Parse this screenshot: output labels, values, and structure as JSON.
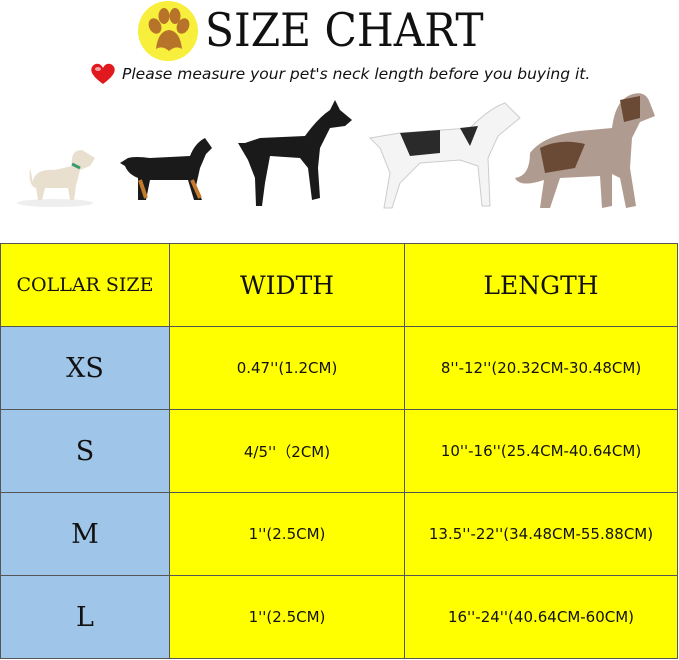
{
  "header": {
    "title": "SIZE CHART",
    "note": "Please measure your pet's neck length before you buying it.",
    "icons": [
      "paw-icon",
      "heart-icon"
    ]
  },
  "colors": {
    "size_column": "#9fc5e8",
    "cells": "#ffff00",
    "paw_circle": "#f7ef3c",
    "paw": "#b8732a",
    "heart": "#e0191f"
  },
  "table": {
    "columns": [
      "COLLAR SIZE",
      "WIDTH",
      "LENGTH"
    ],
    "rows": [
      {
        "size": "XS",
        "width": "0.47''(1.2CM)",
        "length": "8''-12''(20.32CM-30.48CM)"
      },
      {
        "size": "S",
        "width": "4/5''（2CM)",
        "length": "10''-16''(25.4CM-40.64CM)"
      },
      {
        "size": "M",
        "width": "1''(2.5CM)",
        "length": "13.5''-22''(34.48CM-55.88CM)"
      },
      {
        "size": "L",
        "width": "1''(2.5CM)",
        "length": "16''-24''(40.64CM-60CM)"
      }
    ]
  }
}
